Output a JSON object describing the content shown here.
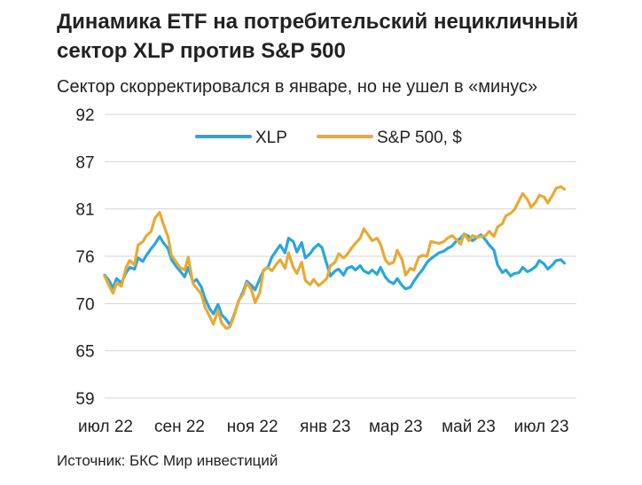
{
  "title": "Динамика ETF на потребительский нецикличный сектор XLP против S&P 500",
  "subtitle": "Сектор скорректировался в январе, но не ушел в «минус»",
  "source": "Источник: БКС Мир инвестиций",
  "colors": {
    "xlp": "#2aa6dc",
    "sp500": "#e8aa35",
    "grid": "#d4d4d4"
  },
  "chart_data": {
    "type": "line",
    "ylim": [
      59,
      92
    ],
    "y_ticks": [
      "92",
      "87",
      "81",
      "76",
      "70",
      "65",
      "59"
    ],
    "x_range": [
      "2022-07-01",
      "2023-07-31"
    ],
    "x_ticks": [
      {
        "label": "июл 22",
        "date": "2022-07-01"
      },
      {
        "label": "сен 22",
        "date": "2022-09-01"
      },
      {
        "label": "ноя 22",
        "date": "2022-11-01"
      },
      {
        "label": "янв 23",
        "date": "2023-01-01"
      },
      {
        "label": "мар 23",
        "date": "2023-03-01"
      },
      {
        "label": "май 23",
        "date": "2023-05-01"
      },
      {
        "label": "июл 23",
        "date": "2023-07-01"
      }
    ],
    "legend": [
      "XLP",
      "S&P 500, $"
    ],
    "grid": true,
    "series": [
      {
        "name": "XLP",
        "points": [
          [
            "2022-07-01",
            73.3
          ],
          [
            "2022-07-05",
            72.6
          ],
          [
            "2022-07-08",
            71.8
          ],
          [
            "2022-07-11",
            72.9
          ],
          [
            "2022-07-15",
            72.4
          ],
          [
            "2022-07-19",
            73.6
          ],
          [
            "2022-07-22",
            74.2
          ],
          [
            "2022-07-26",
            74.0
          ],
          [
            "2022-07-29",
            75.3
          ],
          [
            "2022-08-02",
            74.9
          ],
          [
            "2022-08-05",
            75.6
          ],
          [
            "2022-08-09",
            76.4
          ],
          [
            "2022-08-12",
            76.9
          ],
          [
            "2022-08-16",
            77.8
          ],
          [
            "2022-08-19",
            77.1
          ],
          [
            "2022-08-23",
            76.4
          ],
          [
            "2022-08-26",
            75.1
          ],
          [
            "2022-08-30",
            74.3
          ],
          [
            "2022-09-02",
            73.8
          ],
          [
            "2022-09-06",
            73.1
          ],
          [
            "2022-09-09",
            74.2
          ],
          [
            "2022-09-13",
            72.5
          ],
          [
            "2022-09-16",
            72.8
          ],
          [
            "2022-09-20",
            71.9
          ],
          [
            "2022-09-23",
            70.6
          ],
          [
            "2022-09-27",
            69.4
          ],
          [
            "2022-09-30",
            68.8
          ],
          [
            "2022-10-04",
            69.9
          ],
          [
            "2022-10-07",
            68.7
          ],
          [
            "2022-10-11",
            68.1
          ],
          [
            "2022-10-14",
            67.5
          ],
          [
            "2022-10-18",
            68.9
          ],
          [
            "2022-10-21",
            70.2
          ],
          [
            "2022-10-25",
            71.4
          ],
          [
            "2022-10-28",
            72.6
          ],
          [
            "2022-11-01",
            72.1
          ],
          [
            "2022-11-04",
            71.6
          ],
          [
            "2022-11-08",
            72.9
          ],
          [
            "2022-11-11",
            73.8
          ],
          [
            "2022-11-15",
            74.3
          ],
          [
            "2022-11-18",
            75.4
          ],
          [
            "2022-11-22",
            76.2
          ],
          [
            "2022-11-25",
            76.8
          ],
          [
            "2022-11-29",
            75.9
          ],
          [
            "2022-12-02",
            77.6
          ],
          [
            "2022-12-06",
            77.2
          ],
          [
            "2022-12-09",
            76.0
          ],
          [
            "2022-12-13",
            77.1
          ],
          [
            "2022-12-16",
            75.3
          ],
          [
            "2022-12-20",
            75.8
          ],
          [
            "2022-12-23",
            76.4
          ],
          [
            "2022-12-27",
            76.9
          ],
          [
            "2022-12-30",
            76.5
          ],
          [
            "2023-01-03",
            74.6
          ],
          [
            "2023-01-06",
            73.2
          ],
          [
            "2023-01-10",
            73.8
          ],
          [
            "2023-01-13",
            74.0
          ],
          [
            "2023-01-17",
            73.3
          ],
          [
            "2023-01-20",
            74.1
          ],
          [
            "2023-01-24",
            74.3
          ],
          [
            "2023-01-27",
            73.9
          ],
          [
            "2023-01-31",
            74.4
          ],
          [
            "2023-02-03",
            73.8
          ],
          [
            "2023-02-07",
            73.5
          ],
          [
            "2023-02-10",
            73.9
          ],
          [
            "2023-02-14",
            73.4
          ],
          [
            "2023-02-17",
            74.2
          ],
          [
            "2023-02-21",
            73.1
          ],
          [
            "2023-02-24",
            72.6
          ],
          [
            "2023-02-28",
            72.3
          ],
          [
            "2023-03-03",
            72.9
          ],
          [
            "2023-03-07",
            72.1
          ],
          [
            "2023-03-10",
            71.7
          ],
          [
            "2023-03-14",
            71.9
          ],
          [
            "2023-03-17",
            72.6
          ],
          [
            "2023-03-21",
            73.4
          ],
          [
            "2023-03-24",
            73.9
          ],
          [
            "2023-03-28",
            74.8
          ],
          [
            "2023-03-31",
            75.2
          ],
          [
            "2023-04-04",
            75.6
          ],
          [
            "2023-04-07",
            75.9
          ],
          [
            "2023-04-11",
            76.1
          ],
          [
            "2023-04-14",
            76.4
          ],
          [
            "2023-04-18",
            76.7
          ],
          [
            "2023-04-21",
            77.2
          ],
          [
            "2023-04-25",
            77.6
          ],
          [
            "2023-04-28",
            78.1
          ],
          [
            "2023-05-02",
            77.8
          ],
          [
            "2023-05-05",
            77.3
          ],
          [
            "2023-05-09",
            77.7
          ],
          [
            "2023-05-12",
            78.0
          ],
          [
            "2023-05-16",
            77.4
          ],
          [
            "2023-05-19",
            76.8
          ],
          [
            "2023-05-23",
            76.2
          ],
          [
            "2023-05-26",
            74.5
          ],
          [
            "2023-05-30",
            73.6
          ],
          [
            "2023-06-02",
            73.9
          ],
          [
            "2023-06-06",
            73.2
          ],
          [
            "2023-06-09",
            73.5
          ],
          [
            "2023-06-13",
            73.6
          ],
          [
            "2023-06-16",
            74.2
          ],
          [
            "2023-06-20",
            73.7
          ],
          [
            "2023-06-23",
            73.9
          ],
          [
            "2023-06-27",
            74.3
          ],
          [
            "2023-06-30",
            75.0
          ],
          [
            "2023-07-04",
            74.6
          ],
          [
            "2023-07-07",
            74.0
          ],
          [
            "2023-07-11",
            74.5
          ],
          [
            "2023-07-14",
            75.0
          ],
          [
            "2023-07-18",
            75.1
          ],
          [
            "2023-07-21",
            74.7
          ]
        ]
      },
      {
        "name": "S&P 500, $",
        "points": [
          [
            "2022-07-01",
            73.2
          ],
          [
            "2022-07-05",
            72.0
          ],
          [
            "2022-07-08",
            71.2
          ],
          [
            "2022-07-11",
            72.4
          ],
          [
            "2022-07-15",
            72.0
          ],
          [
            "2022-07-19",
            74.2
          ],
          [
            "2022-07-22",
            75.0
          ],
          [
            "2022-07-26",
            74.5
          ],
          [
            "2022-07-29",
            76.8
          ],
          [
            "2022-08-02",
            77.2
          ],
          [
            "2022-08-05",
            77.9
          ],
          [
            "2022-08-09",
            78.4
          ],
          [
            "2022-08-12",
            79.9
          ],
          [
            "2022-08-16",
            80.6
          ],
          [
            "2022-08-19",
            79.3
          ],
          [
            "2022-08-23",
            77.8
          ],
          [
            "2022-08-26",
            75.6
          ],
          [
            "2022-08-30",
            74.8
          ],
          [
            "2022-09-02",
            74.2
          ],
          [
            "2022-09-06",
            73.9
          ],
          [
            "2022-09-09",
            75.4
          ],
          [
            "2022-09-13",
            72.3
          ],
          [
            "2022-09-16",
            71.8
          ],
          [
            "2022-09-20",
            71.1
          ],
          [
            "2022-09-23",
            69.6
          ],
          [
            "2022-09-27",
            68.5
          ],
          [
            "2022-09-30",
            67.6
          ],
          [
            "2022-10-04",
            69.2
          ],
          [
            "2022-10-07",
            67.7
          ],
          [
            "2022-10-11",
            67.1
          ],
          [
            "2022-10-14",
            67.3
          ],
          [
            "2022-10-18",
            68.8
          ],
          [
            "2022-10-21",
            70.3
          ],
          [
            "2022-10-25",
            71.1
          ],
          [
            "2022-10-28",
            72.4
          ],
          [
            "2022-11-01",
            71.6
          ],
          [
            "2022-11-04",
            70.1
          ],
          [
            "2022-11-08",
            71.3
          ],
          [
            "2022-11-11",
            73.9
          ],
          [
            "2022-11-15",
            74.2
          ],
          [
            "2022-11-18",
            73.8
          ],
          [
            "2022-11-22",
            74.6
          ],
          [
            "2022-11-25",
            75.1
          ],
          [
            "2022-11-29",
            74.1
          ],
          [
            "2022-12-02",
            75.9
          ],
          [
            "2022-12-06",
            74.2
          ],
          [
            "2022-12-09",
            73.5
          ],
          [
            "2022-12-13",
            74.8
          ],
          [
            "2022-12-16",
            72.7
          ],
          [
            "2022-12-20",
            72.2
          ],
          [
            "2022-12-23",
            72.8
          ],
          [
            "2022-12-27",
            72.1
          ],
          [
            "2022-12-30",
            72.4
          ],
          [
            "2023-01-03",
            72.9
          ],
          [
            "2023-01-06",
            74.4
          ],
          [
            "2023-01-10",
            74.8
          ],
          [
            "2023-01-13",
            75.8
          ],
          [
            "2023-01-17",
            75.3
          ],
          [
            "2023-01-20",
            75.7
          ],
          [
            "2023-01-24",
            76.5
          ],
          [
            "2023-01-27",
            77.0
          ],
          [
            "2023-01-31",
            77.6
          ],
          [
            "2023-02-03",
            78.7
          ],
          [
            "2023-02-07",
            77.9
          ],
          [
            "2023-02-10",
            77.3
          ],
          [
            "2023-02-14",
            77.6
          ],
          [
            "2023-02-17",
            76.9
          ],
          [
            "2023-02-21",
            75.1
          ],
          [
            "2023-02-24",
            74.6
          ],
          [
            "2023-02-28",
            74.8
          ],
          [
            "2023-03-03",
            76.2
          ],
          [
            "2023-03-07",
            75.1
          ],
          [
            "2023-03-10",
            73.3
          ],
          [
            "2023-03-14",
            74.1
          ],
          [
            "2023-03-17",
            73.9
          ],
          [
            "2023-03-21",
            75.4
          ],
          [
            "2023-03-24",
            75.6
          ],
          [
            "2023-03-28",
            75.5
          ],
          [
            "2023-03-31",
            77.2
          ],
          [
            "2023-04-04",
            77.1
          ],
          [
            "2023-04-07",
            77.0
          ],
          [
            "2023-04-11",
            77.2
          ],
          [
            "2023-04-14",
            77.6
          ],
          [
            "2023-04-18",
            77.9
          ],
          [
            "2023-04-21",
            77.5
          ],
          [
            "2023-04-25",
            76.9
          ],
          [
            "2023-04-28",
            78.1
          ],
          [
            "2023-05-02",
            77.3
          ],
          [
            "2023-05-05",
            77.9
          ],
          [
            "2023-05-09",
            77.7
          ],
          [
            "2023-05-12",
            77.8
          ],
          [
            "2023-05-16",
            77.9
          ],
          [
            "2023-05-19",
            78.4
          ],
          [
            "2023-05-23",
            77.8
          ],
          [
            "2023-05-26",
            78.9
          ],
          [
            "2023-05-30",
            79.3
          ],
          [
            "2023-06-02",
            80.2
          ],
          [
            "2023-06-06",
            80.5
          ],
          [
            "2023-06-09",
            80.9
          ],
          [
            "2023-06-13",
            82.0
          ],
          [
            "2023-06-16",
            82.8
          ],
          [
            "2023-06-20",
            82.1
          ],
          [
            "2023-06-23",
            81.2
          ],
          [
            "2023-06-27",
            81.8
          ],
          [
            "2023-06-30",
            82.6
          ],
          [
            "2023-07-04",
            82.4
          ],
          [
            "2023-07-07",
            81.7
          ],
          [
            "2023-07-11",
            82.6
          ],
          [
            "2023-07-14",
            83.4
          ],
          [
            "2023-07-18",
            83.6
          ],
          [
            "2023-07-21",
            83.3
          ]
        ]
      }
    ]
  }
}
